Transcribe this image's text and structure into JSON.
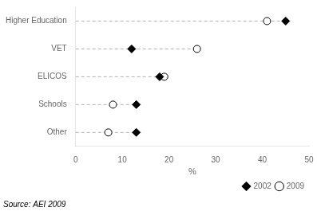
{
  "chart_data": {
    "type": "dot",
    "categories": [
      "Higher Education",
      "VET",
      "ELICOS",
      "Schools",
      "Other"
    ],
    "series": [
      {
        "name": "2002",
        "color": "#000000",
        "marker": "diamond",
        "values": [
          45,
          12,
          18,
          13,
          13
        ]
      },
      {
        "name": "2009",
        "color": "#000000",
        "marker": "circle",
        "values": [
          41,
          26,
          19,
          8,
          7
        ]
      }
    ],
    "xlabel": "%",
    "xlim": [
      0,
      50
    ],
    "xticks": [
      0,
      10,
      20,
      30,
      40,
      50
    ],
    "grid": false,
    "legend": "lower right",
    "annotation": "Source: AEI 2009"
  }
}
